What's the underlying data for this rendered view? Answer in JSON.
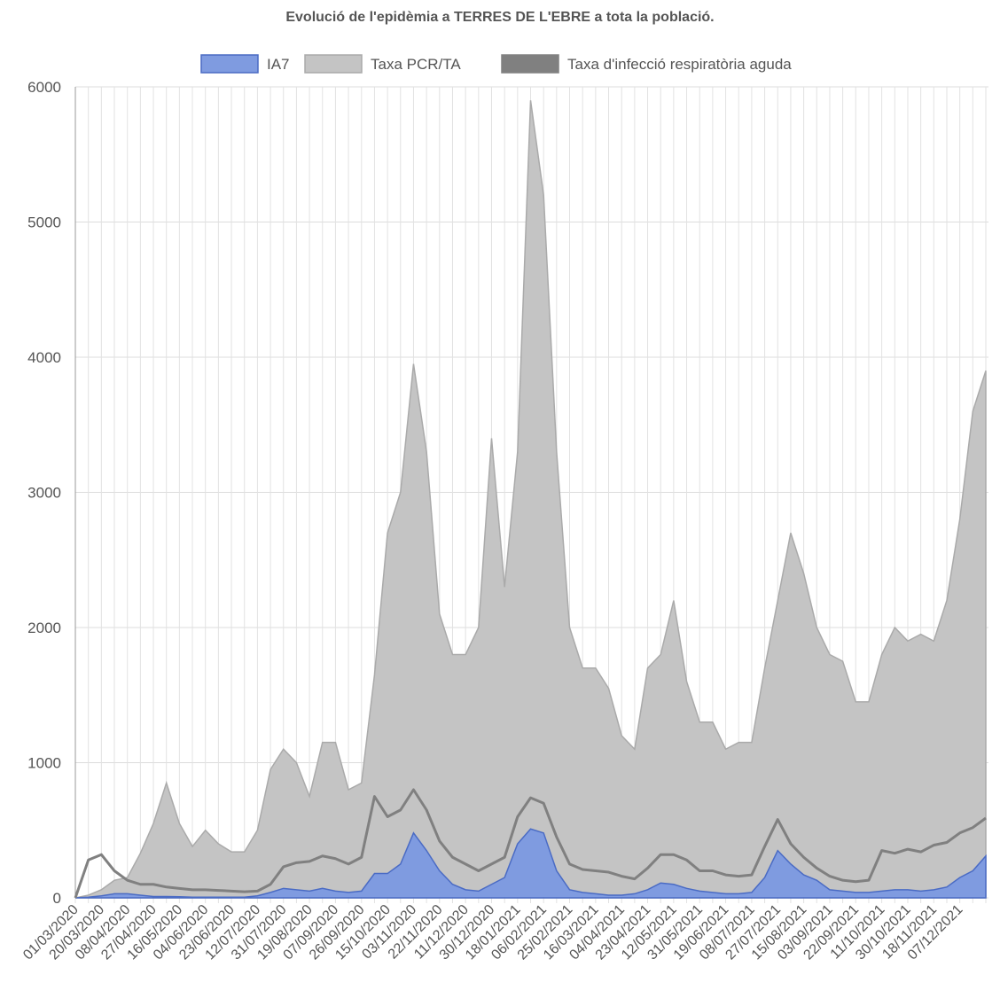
{
  "chart_data": {
    "type": "area",
    "title": "Evolució de l'epidèmia a TERRES DE L'EBRE a tota la població.",
    "categories": [
      "01/03/2020",
      null,
      "20/03/2020",
      null,
      "08/04/2020",
      null,
      "27/04/2020",
      null,
      "16/05/2020",
      null,
      "04/06/2020",
      null,
      "23/06/2020",
      null,
      "12/07/2020",
      null,
      "31/07/2020",
      null,
      "19/08/2020",
      null,
      "07/09/2020",
      null,
      "26/09/2020",
      null,
      "15/10/2020",
      null,
      "03/11/2020",
      null,
      "22/11/2020",
      null,
      "11/12/2020",
      null,
      "30/12/2020",
      null,
      "18/01/2021",
      null,
      "06/02/2021",
      null,
      "25/02/2021",
      null,
      "16/03/2021",
      null,
      "04/04/2021",
      null,
      "23/04/2021",
      null,
      "12/05/2021",
      null,
      "31/05/2021",
      null,
      "19/06/2021",
      null,
      "08/07/2021",
      null,
      "27/07/2021",
      null,
      "15/08/2021",
      null,
      "03/09/2021",
      null,
      "22/09/2021",
      null,
      "11/10/2021",
      null,
      "30/10/2021",
      null,
      "18/11/2021",
      null,
      "07/12/2021",
      null,
      null
    ],
    "series": [
      {
        "name": "IA7",
        "color": "#4a6bc4",
        "fill": "#7f9be0",
        "values": [
          0,
          5,
          15,
          30,
          30,
          20,
          10,
          10,
          8,
          5,
          5,
          5,
          5,
          5,
          15,
          40,
          70,
          60,
          50,
          70,
          50,
          40,
          50,
          180,
          180,
          250,
          480,
          350,
          200,
          100,
          60,
          50,
          100,
          150,
          400,
          510,
          480,
          200,
          60,
          40,
          30,
          20,
          20,
          30,
          60,
          110,
          100,
          70,
          50,
          40,
          30,
          30,
          40,
          150,
          350,
          250,
          170,
          130,
          60,
          50,
          40,
          40,
          50,
          60,
          60,
          50,
          60,
          80,
          150,
          200,
          310
        ]
      },
      {
        "name": "Taxa PCR/TA",
        "color": "#aaaaaa",
        "fill": "#c4c4c4",
        "values": [
          0,
          20,
          60,
          130,
          150,
          330,
          550,
          850,
          550,
          380,
          500,
          400,
          340,
          340,
          500,
          950,
          1100,
          1000,
          750,
          1150,
          1150,
          800,
          850,
          1650,
          2700,
          3000,
          3950,
          3300,
          2100,
          1800,
          1800,
          2000,
          3400,
          2300,
          3300,
          5900,
          5200,
          3300,
          2000,
          1700,
          1700,
          1550,
          1200,
          1100,
          1700,
          1800,
          2200,
          1600,
          1300,
          1300,
          1100,
          1150,
          1150,
          1700,
          2200,
          2700,
          2400,
          2000,
          1800,
          1750,
          1450,
          1450,
          1800,
          2000,
          1900,
          1950,
          1900,
          2200,
          2800,
          3600,
          3900
        ]
      },
      {
        "name": "Taxa d'infecció respiratòria aguda",
        "color": "#808080",
        "line": true,
        "values": [
          0,
          280,
          320,
          200,
          130,
          100,
          100,
          80,
          70,
          60,
          60,
          55,
          50,
          45,
          50,
          100,
          230,
          260,
          270,
          310,
          290,
          250,
          300,
          750,
          600,
          650,
          800,
          650,
          420,
          300,
          250,
          200,
          250,
          300,
          600,
          740,
          700,
          450,
          250,
          210,
          200,
          190,
          160,
          140,
          220,
          320,
          320,
          280,
          200,
          200,
          170,
          160,
          170,
          380,
          580,
          400,
          300,
          220,
          160,
          130,
          120,
          130,
          350,
          330,
          360,
          340,
          390,
          410,
          480,
          520,
          590
        ]
      }
    ],
    "ylim": [
      0,
      6000
    ],
    "yticks": [
      0,
      1000,
      2000,
      3000,
      4000,
      5000,
      6000
    ],
    "grid": true,
    "legend": "top"
  }
}
